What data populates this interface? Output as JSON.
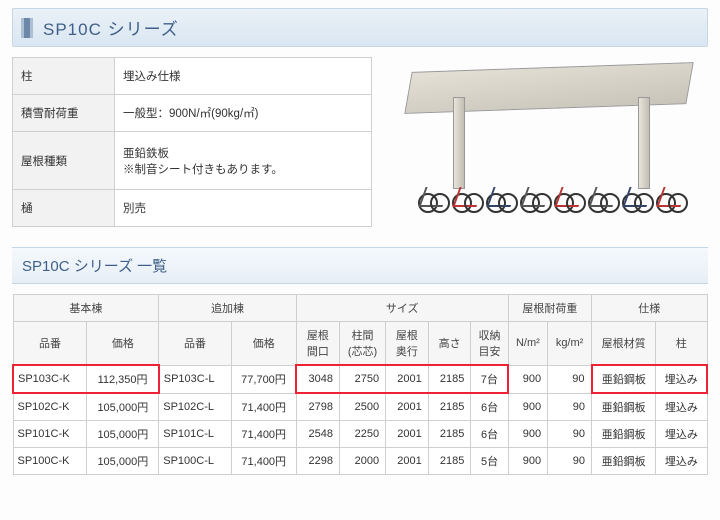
{
  "title": "SP10C シリーズ",
  "subtitle": "SP10C シリーズ 一覧",
  "spec_rows": [
    {
      "label": "柱",
      "value": "埋込み仕様"
    },
    {
      "label": "積雪耐荷重",
      "value": "一般型：900N/㎡(90kg/㎡)"
    },
    {
      "label": "屋根種類",
      "value": "亜鉛鉄板\n※制音シート付きもあります。"
    },
    {
      "label": "樋",
      "value": "別売"
    }
  ],
  "table": {
    "group_headers": [
      "基本棟",
      "追加棟",
      "サイズ",
      "屋根耐荷重",
      "仕様"
    ],
    "group_spans": [
      2,
      2,
      5,
      2,
      2
    ],
    "sub_headers": [
      "品番",
      "価格",
      "品番",
      "価格",
      "屋根\n間口",
      "柱間\n(芯芯)",
      "屋根\n奥行",
      "高さ",
      "収納\n目安",
      "N/m²",
      "kg/m²",
      "屋根材質",
      "柱"
    ],
    "rows": [
      {
        "cells": [
          "SP103C-K",
          "112,350円",
          "SP103C-L",
          "77,700円",
          "3048",
          "2750",
          "2001",
          "2185",
          "7台",
          "900",
          "90",
          "亜鉛鋼板",
          "埋込み"
        ],
        "highlight_groups": [
          [
            0,
            1
          ],
          [
            4,
            5,
            6,
            7,
            8
          ],
          [
            11,
            12
          ]
        ]
      },
      {
        "cells": [
          "SP102C-K",
          "105,000円",
          "SP102C-L",
          "71,400円",
          "2798",
          "2500",
          "2001",
          "2185",
          "6台",
          "900",
          "90",
          "亜鉛鋼板",
          "埋込み"
        ]
      },
      {
        "cells": [
          "SP101C-K",
          "105,000円",
          "SP101C-L",
          "71,400円",
          "2548",
          "2250",
          "2001",
          "2185",
          "6台",
          "900",
          "90",
          "亜鉛鋼板",
          "埋込み"
        ]
      },
      {
        "cells": [
          "SP100C-K",
          "105,000円",
          "SP100C-L",
          "71,400円",
          "2298",
          "2000",
          "2001",
          "2185",
          "5台",
          "900",
          "90",
          "亜鉛鋼板",
          "埋込み"
        ]
      }
    ],
    "numeric_cols": [
      4,
      5,
      6,
      7,
      9,
      10
    ],
    "left_cols": [
      0,
      2
    ]
  },
  "colors": {
    "title_text": "#3f5f88",
    "title_bg_top": "#eaf1f7",
    "title_bg_bottom": "#d9e6f2",
    "border": "#cfcfcf",
    "highlight": "#e23"
  }
}
